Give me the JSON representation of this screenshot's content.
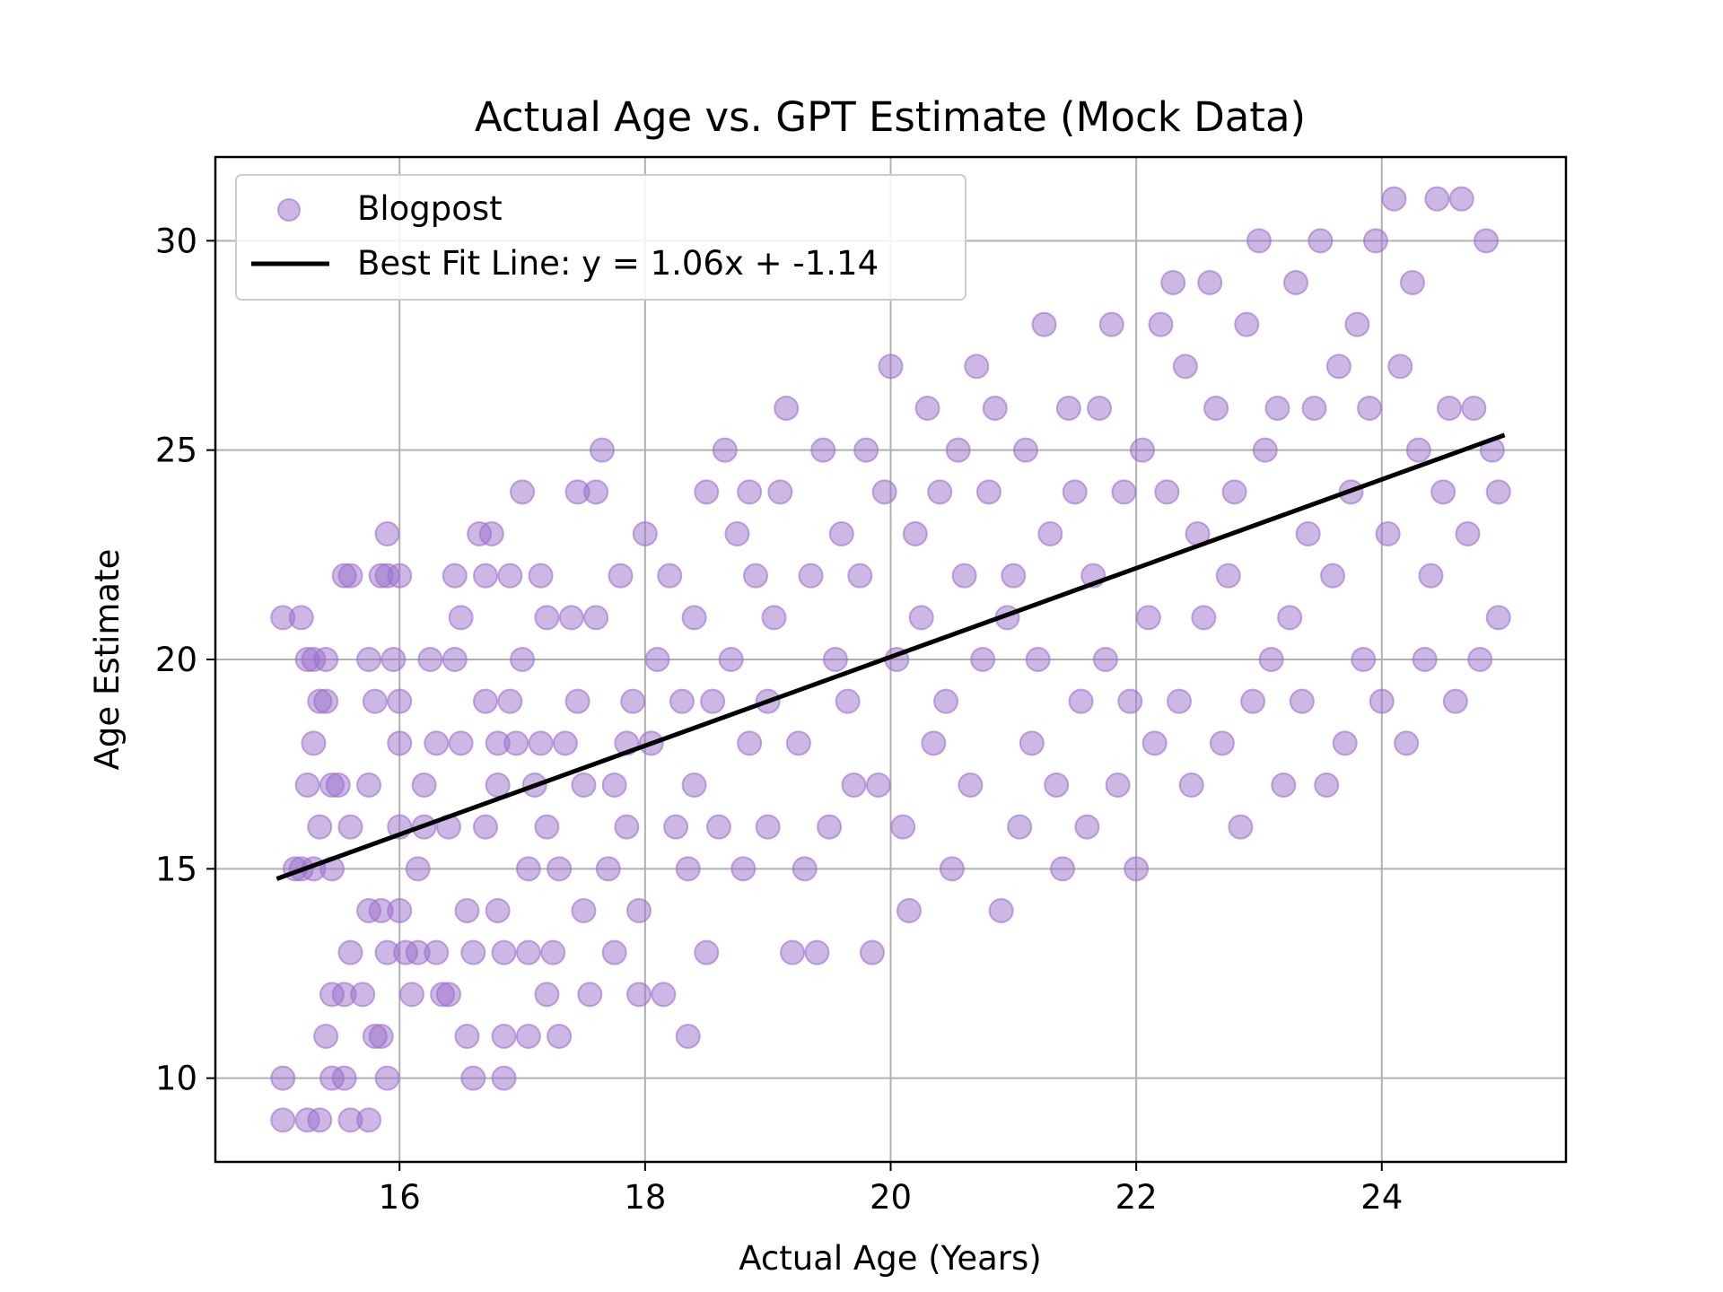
{
  "chart_data": {
    "type": "scatter",
    "title": "Actual Age vs. GPT Estimate (Mock Data)",
    "xlabel": "Actual Age (Years)",
    "ylabel": "Age Estimate",
    "xlim": [
      14.5,
      25.5
    ],
    "ylim": [
      8,
      32
    ],
    "xticks": [
      16,
      18,
      20,
      22,
      24
    ],
    "yticks": [
      10,
      15,
      20,
      25,
      30
    ],
    "grid": true,
    "legend_position": "top-left",
    "colors": {
      "points": "#9b6fcb",
      "line": "#000000",
      "grid": "#b0b0b0"
    },
    "series": [
      {
        "name": "Blogpost",
        "kind": "scatter",
        "points": [
          [
            15.05,
            21
          ],
          [
            15.2,
            21
          ],
          [
            15.25,
            20
          ],
          [
            15.3,
            20
          ],
          [
            15.4,
            20
          ],
          [
            15.15,
            15
          ],
          [
            15.2,
            15
          ],
          [
            15.3,
            15
          ],
          [
            15.05,
            10
          ],
          [
            15.05,
            9
          ],
          [
            15.25,
            9
          ],
          [
            15.35,
            9
          ],
          [
            15.3,
            18
          ],
          [
            15.25,
            17
          ],
          [
            15.35,
            16
          ],
          [
            15.35,
            19
          ],
          [
            15.4,
            19
          ],
          [
            15.45,
            17
          ],
          [
            15.5,
            17
          ],
          [
            15.45,
            15
          ],
          [
            15.45,
            10
          ],
          [
            15.4,
            11
          ],
          [
            15.45,
            12
          ],
          [
            15.55,
            10
          ],
          [
            15.6,
            22
          ],
          [
            15.55,
            22
          ],
          [
            15.6,
            16
          ],
          [
            15.6,
            13
          ],
          [
            15.55,
            12
          ],
          [
            15.7,
            12
          ],
          [
            15.6,
            9
          ],
          [
            15.75,
            9
          ],
          [
            15.75,
            17
          ],
          [
            15.75,
            20
          ],
          [
            15.8,
            19
          ],
          [
            15.75,
            14
          ],
          [
            15.8,
            11
          ],
          [
            15.85,
            14
          ],
          [
            15.9,
            13
          ],
          [
            15.85,
            11
          ],
          [
            15.9,
            10
          ],
          [
            15.85,
            22
          ],
          [
            15.9,
            22
          ],
          [
            15.9,
            23
          ],
          [
            15.95,
            20
          ],
          [
            16,
            22
          ],
          [
            16,
            19
          ],
          [
            16,
            18
          ],
          [
            16,
            16
          ],
          [
            16.05,
            13
          ],
          [
            16.0,
            14
          ],
          [
            16.1,
            12
          ],
          [
            16.15,
            13
          ],
          [
            16.15,
            15
          ],
          [
            16.2,
            16
          ],
          [
            16.2,
            17
          ],
          [
            16.25,
            20
          ],
          [
            16.3,
            18
          ],
          [
            16.3,
            13
          ],
          [
            16.35,
            12
          ],
          [
            16.4,
            12
          ],
          [
            16.4,
            16
          ],
          [
            16.45,
            20
          ],
          [
            16.45,
            22
          ],
          [
            16.5,
            21
          ],
          [
            16.5,
            18
          ],
          [
            16.55,
            14
          ],
          [
            16.55,
            11
          ],
          [
            16.6,
            13
          ],
          [
            16.6,
            10
          ],
          [
            16.65,
            23
          ],
          [
            16.7,
            22
          ],
          [
            16.7,
            19
          ],
          [
            16.7,
            16
          ],
          [
            16.75,
            23
          ],
          [
            16.8,
            18
          ],
          [
            16.8,
            17
          ],
          [
            16.8,
            14
          ],
          [
            16.85,
            13
          ],
          [
            16.85,
            11
          ],
          [
            16.85,
            10
          ],
          [
            16.9,
            22
          ],
          [
            16.9,
            19
          ],
          [
            16.95,
            18
          ],
          [
            17.0,
            24
          ],
          [
            17.0,
            20
          ],
          [
            17.05,
            15
          ],
          [
            17.05,
            13
          ],
          [
            17.05,
            11
          ],
          [
            17.1,
            17
          ],
          [
            17.15,
            22
          ],
          [
            17.15,
            18
          ],
          [
            17.2,
            21
          ],
          [
            17.2,
            16
          ],
          [
            17.25,
            13
          ],
          [
            17.2,
            12
          ],
          [
            17.3,
            15
          ],
          [
            17.3,
            11
          ],
          [
            17.35,
            18
          ],
          [
            17.4,
            21
          ],
          [
            17.45,
            24
          ],
          [
            17.45,
            19
          ],
          [
            17.5,
            17
          ],
          [
            17.5,
            14
          ],
          [
            17.55,
            12
          ],
          [
            17.6,
            24
          ],
          [
            17.6,
            21
          ],
          [
            17.65,
            25
          ],
          [
            17.7,
            15
          ],
          [
            17.75,
            17
          ],
          [
            17.75,
            13
          ],
          [
            17.8,
            22
          ],
          [
            17.85,
            18
          ],
          [
            17.85,
            16
          ],
          [
            17.9,
            19
          ],
          [
            17.95,
            14
          ],
          [
            17.95,
            12
          ],
          [
            18.0,
            23
          ],
          [
            18.05,
            18
          ],
          [
            18.1,
            20
          ],
          [
            18.15,
            12
          ],
          [
            18.2,
            22
          ],
          [
            18.25,
            16
          ],
          [
            18.3,
            19
          ],
          [
            18.35,
            11
          ],
          [
            18.35,
            15
          ],
          [
            18.4,
            17
          ],
          [
            18.4,
            21
          ],
          [
            18.5,
            24
          ],
          [
            18.5,
            13
          ],
          [
            18.55,
            19
          ],
          [
            18.6,
            16
          ],
          [
            18.65,
            25
          ],
          [
            18.7,
            20
          ],
          [
            18.75,
            23
          ],
          [
            18.8,
            15
          ],
          [
            18.85,
            18
          ],
          [
            18.85,
            24
          ],
          [
            18.9,
            22
          ],
          [
            19.0,
            19
          ],
          [
            19.0,
            16
          ],
          [
            19.05,
            21
          ],
          [
            19.1,
            24
          ],
          [
            19.15,
            26
          ],
          [
            19.2,
            13
          ],
          [
            19.25,
            18
          ],
          [
            19.3,
            15
          ],
          [
            19.35,
            22
          ],
          [
            19.4,
            13
          ],
          [
            19.45,
            25
          ],
          [
            19.5,
            16
          ],
          [
            19.55,
            20
          ],
          [
            19.6,
            23
          ],
          [
            19.65,
            19
          ],
          [
            19.7,
            17
          ],
          [
            19.75,
            22
          ],
          [
            19.8,
            25
          ],
          [
            19.85,
            13
          ],
          [
            19.9,
            17
          ],
          [
            19.95,
            24
          ],
          [
            20.0,
            27
          ],
          [
            20.05,
            20
          ],
          [
            20.1,
            16
          ],
          [
            20.15,
            14
          ],
          [
            20.2,
            23
          ],
          [
            20.25,
            21
          ],
          [
            20.3,
            26
          ],
          [
            20.35,
            18
          ],
          [
            20.4,
            24
          ],
          [
            20.45,
            19
          ],
          [
            20.5,
            15
          ],
          [
            20.55,
            25
          ],
          [
            20.6,
            22
          ],
          [
            20.65,
            17
          ],
          [
            20.7,
            27
          ],
          [
            20.75,
            20
          ],
          [
            20.8,
            24
          ],
          [
            20.85,
            26
          ],
          [
            20.9,
            14
          ],
          [
            20.95,
            21
          ],
          [
            21.0,
            22
          ],
          [
            21.05,
            16
          ],
          [
            21.1,
            25
          ],
          [
            21.15,
            18
          ],
          [
            21.2,
            20
          ],
          [
            21.25,
            28
          ],
          [
            21.3,
            23
          ],
          [
            21.35,
            17
          ],
          [
            21.4,
            15
          ],
          [
            21.45,
            26
          ],
          [
            21.5,
            24
          ],
          [
            21.55,
            19
          ],
          [
            21.6,
            16
          ],
          [
            21.65,
            22
          ],
          [
            21.7,
            26
          ],
          [
            21.75,
            20
          ],
          [
            21.8,
            28
          ],
          [
            21.85,
            17
          ],
          [
            21.9,
            24
          ],
          [
            21.95,
            19
          ],
          [
            22.0,
            15
          ],
          [
            22.05,
            25
          ],
          [
            22.1,
            21
          ],
          [
            22.15,
            18
          ],
          [
            22.2,
            28
          ],
          [
            22.25,
            24
          ],
          [
            22.3,
            29
          ],
          [
            22.35,
            19
          ],
          [
            22.4,
            27
          ],
          [
            22.45,
            17
          ],
          [
            22.5,
            23
          ],
          [
            22.55,
            21
          ],
          [
            22.6,
            29
          ],
          [
            22.65,
            26
          ],
          [
            22.7,
            18
          ],
          [
            22.75,
            22
          ],
          [
            22.8,
            24
          ],
          [
            22.85,
            16
          ],
          [
            22.9,
            28
          ],
          [
            22.95,
            19
          ],
          [
            23.0,
            30
          ],
          [
            23.05,
            25
          ],
          [
            23.1,
            20
          ],
          [
            23.15,
            26
          ],
          [
            23.2,
            17
          ],
          [
            23.25,
            21
          ],
          [
            23.3,
            29
          ],
          [
            23.35,
            19
          ],
          [
            23.4,
            23
          ],
          [
            23.45,
            26
          ],
          [
            23.5,
            30
          ],
          [
            23.55,
            17
          ],
          [
            23.6,
            22
          ],
          [
            23.65,
            27
          ],
          [
            23.7,
            18
          ],
          [
            23.75,
            24
          ],
          [
            23.8,
            28
          ],
          [
            23.85,
            20
          ],
          [
            23.9,
            26
          ],
          [
            23.95,
            30
          ],
          [
            24.0,
            19
          ],
          [
            24.05,
            23
          ],
          [
            24.1,
            31
          ],
          [
            24.15,
            27
          ],
          [
            24.2,
            18
          ],
          [
            24.25,
            29
          ],
          [
            24.3,
            25
          ],
          [
            24.35,
            20
          ],
          [
            24.4,
            22
          ],
          [
            24.45,
            31
          ],
          [
            24.5,
            24
          ],
          [
            24.55,
            26
          ],
          [
            24.6,
            19
          ],
          [
            24.65,
            31
          ],
          [
            24.7,
            23
          ],
          [
            24.75,
            26
          ],
          [
            24.8,
            20
          ],
          [
            24.85,
            30
          ],
          [
            24.9,
            25
          ],
          [
            24.95,
            21
          ],
          [
            24.95,
            24
          ]
        ]
      },
      {
        "name": "Best Fit Line: y = 1.06x + -1.14",
        "kind": "line",
        "slope": 1.06,
        "intercept": -1.14,
        "x_range": [
          15.0,
          25.0
        ]
      }
    ]
  }
}
